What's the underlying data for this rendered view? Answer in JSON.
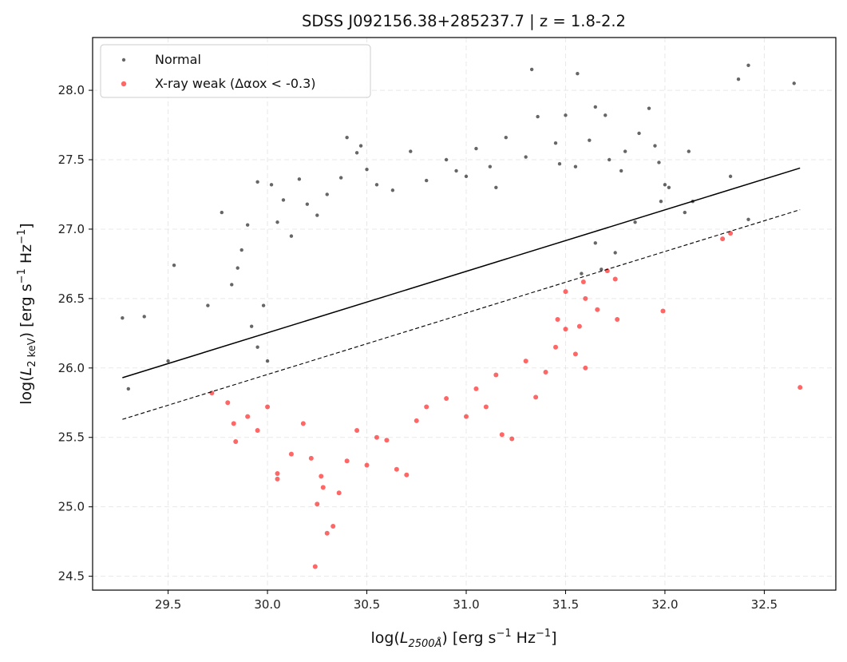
{
  "chart_data": {
    "type": "scatter",
    "title": "SDSS J092156.38+285237.7  |  z = 1.8-2.2",
    "xlabel": {
      "pre": "log(",
      "var": "L",
      "sub": "2500Å",
      "post": ") [erg s",
      "exp1": "−1",
      "mid": " Hz",
      "exp2": "−1",
      "end": "]"
    },
    "ylabel": {
      "pre": "log(",
      "var": "L",
      "sub": "2 keV",
      "post": ") [erg s",
      "exp1": "−1",
      "mid": " Hz",
      "exp2": "−1",
      "end": "]"
    },
    "xlim": [
      29.12,
      32.86
    ],
    "ylim": [
      24.4,
      28.38
    ],
    "xticks": [
      29.5,
      30.0,
      30.5,
      31.0,
      31.5,
      32.0,
      32.5
    ],
    "xtick_labels": [
      "29.5",
      "30.0",
      "30.5",
      "31.0",
      "31.5",
      "32.0",
      "32.5"
    ],
    "yticks": [
      24.5,
      25.0,
      25.5,
      26.0,
      26.5,
      27.0,
      27.5,
      28.0
    ],
    "ytick_labels": [
      "24.5",
      "25.0",
      "25.5",
      "26.0",
      "26.5",
      "27.0",
      "27.5",
      "28.0"
    ],
    "grid": true,
    "legend_position": "top-left",
    "colors": {
      "normal": "#000000",
      "weak": "#ff0000"
    },
    "lines": [
      {
        "style": "solid",
        "x": [
          29.27,
          32.68
        ],
        "y": [
          25.93,
          27.44
        ]
      },
      {
        "style": "dashed",
        "x": [
          29.27,
          32.68
        ],
        "y": [
          25.63,
          27.14
        ]
      }
    ],
    "series": [
      {
        "name": "Normal",
        "color": "#000000",
        "points": [
          [
            29.27,
            26.36
          ],
          [
            29.38,
            26.37
          ],
          [
            29.3,
            25.85
          ],
          [
            29.5,
            26.05
          ],
          [
            29.53,
            26.74
          ],
          [
            29.7,
            26.45
          ],
          [
            29.77,
            27.12
          ],
          [
            29.82,
            26.6
          ],
          [
            29.85,
            26.72
          ],
          [
            29.87,
            26.85
          ],
          [
            29.9,
            27.03
          ],
          [
            29.92,
            26.3
          ],
          [
            29.95,
            26.15
          ],
          [
            29.95,
            27.34
          ],
          [
            30.02,
            27.32
          ],
          [
            30.05,
            27.05
          ],
          [
            30.08,
            27.21
          ],
          [
            30.12,
            26.95
          ],
          [
            30.16,
            27.36
          ],
          [
            30.2,
            27.18
          ],
          [
            30.25,
            27.1
          ],
          [
            30.3,
            27.25
          ],
          [
            30.37,
            27.37
          ],
          [
            30.4,
            27.66
          ],
          [
            30.45,
            27.55
          ],
          [
            30.47,
            27.6
          ],
          [
            30.5,
            27.43
          ],
          [
            30.55,
            27.32
          ],
          [
            30.63,
            27.28
          ],
          [
            30.72,
            27.56
          ],
          [
            30.8,
            27.35
          ],
          [
            30.9,
            27.5
          ],
          [
            30.95,
            27.42
          ],
          [
            31.0,
            27.38
          ],
          [
            31.05,
            27.58
          ],
          [
            31.12,
            27.45
          ],
          [
            31.15,
            27.3
          ],
          [
            31.2,
            27.66
          ],
          [
            31.3,
            27.52
          ],
          [
            31.33,
            28.15
          ],
          [
            31.36,
            27.81
          ],
          [
            31.45,
            27.62
          ],
          [
            31.47,
            27.47
          ],
          [
            31.5,
            27.82
          ],
          [
            31.55,
            27.45
          ],
          [
            31.56,
            28.12
          ],
          [
            31.62,
            27.64
          ],
          [
            31.65,
            27.88
          ],
          [
            31.7,
            27.82
          ],
          [
            31.72,
            27.5
          ],
          [
            31.78,
            27.42
          ],
          [
            31.8,
            27.56
          ],
          [
            31.87,
            27.69
          ],
          [
            31.92,
            27.87
          ],
          [
            31.95,
            27.6
          ],
          [
            31.97,
            27.48
          ],
          [
            32.0,
            27.32
          ],
          [
            32.02,
            27.3
          ],
          [
            32.12,
            27.56
          ],
          [
            32.14,
            27.2
          ],
          [
            32.1,
            27.12
          ],
          [
            31.98,
            27.2
          ],
          [
            32.33,
            27.38
          ],
          [
            32.37,
            28.08
          ],
          [
            32.42,
            28.18
          ],
          [
            32.42,
            27.07
          ],
          [
            32.65,
            28.05
          ],
          [
            31.75,
            26.83
          ],
          [
            31.58,
            26.68
          ],
          [
            31.68,
            26.71
          ],
          [
            31.65,
            26.9
          ],
          [
            31.85,
            27.05
          ],
          [
            30.0,
            26.05
          ],
          [
            29.98,
            26.45
          ]
        ]
      },
      {
        "name": "X-ray weak (Δαox < -0.3)",
        "color": "#ff0000",
        "points": [
          [
            29.72,
            25.82
          ],
          [
            29.8,
            25.75
          ],
          [
            29.83,
            25.6
          ],
          [
            29.84,
            25.47
          ],
          [
            29.9,
            25.65
          ],
          [
            29.95,
            25.55
          ],
          [
            30.0,
            25.72
          ],
          [
            30.05,
            25.24
          ],
          [
            30.05,
            25.2
          ],
          [
            30.12,
            25.38
          ],
          [
            30.18,
            25.6
          ],
          [
            30.22,
            25.35
          ],
          [
            30.24,
            24.57
          ],
          [
            30.25,
            25.02
          ],
          [
            30.27,
            25.22
          ],
          [
            30.28,
            25.14
          ],
          [
            30.3,
            24.81
          ],
          [
            30.33,
            24.86
          ],
          [
            30.36,
            25.1
          ],
          [
            30.4,
            25.33
          ],
          [
            30.45,
            25.55
          ],
          [
            30.5,
            25.3
          ],
          [
            30.55,
            25.5
          ],
          [
            30.6,
            25.48
          ],
          [
            30.65,
            25.27
          ],
          [
            30.7,
            25.23
          ],
          [
            30.75,
            25.62
          ],
          [
            30.8,
            25.72
          ],
          [
            30.9,
            25.78
          ],
          [
            31.0,
            25.65
          ],
          [
            31.05,
            25.85
          ],
          [
            31.1,
            25.72
          ],
          [
            31.15,
            25.95
          ],
          [
            31.18,
            25.52
          ],
          [
            31.23,
            25.49
          ],
          [
            31.35,
            25.79
          ],
          [
            31.3,
            26.05
          ],
          [
            31.4,
            25.97
          ],
          [
            31.45,
            26.15
          ],
          [
            31.5,
            26.28
          ],
          [
            31.57,
            26.3
          ],
          [
            31.6,
            26.5
          ],
          [
            31.66,
            26.42
          ],
          [
            31.71,
            26.7
          ],
          [
            31.75,
            26.64
          ],
          [
            31.59,
            26.62
          ],
          [
            31.76,
            26.35
          ],
          [
            31.99,
            26.41
          ],
          [
            32.29,
            26.93
          ],
          [
            32.33,
            26.97
          ],
          [
            32.68,
            25.86
          ],
          [
            31.6,
            26.0
          ],
          [
            31.55,
            26.1
          ],
          [
            31.46,
            26.35
          ],
          [
            31.5,
            26.55
          ]
        ]
      }
    ]
  }
}
